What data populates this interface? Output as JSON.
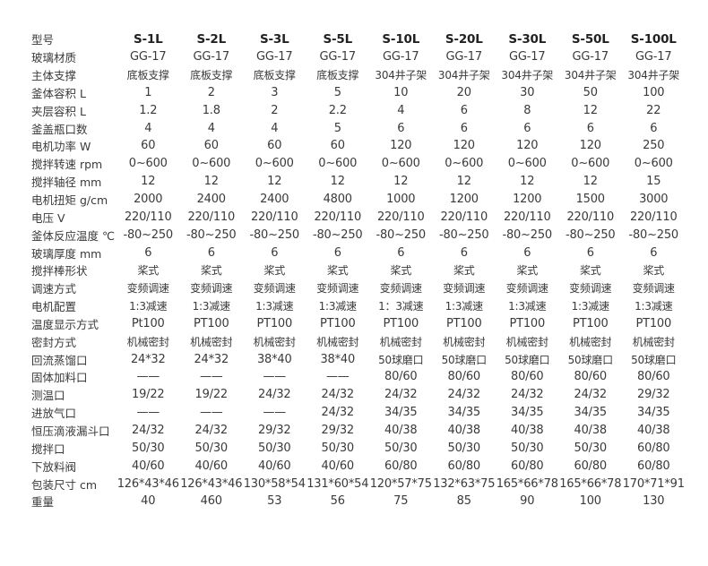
{
  "header": {
    "label": "型号",
    "models": [
      "S-1L",
      "S-2L",
      "S-3L",
      "S-5L",
      "S-10L",
      "S-20L",
      "S-30L",
      "S-50L",
      "S-100L"
    ]
  },
  "rows": [
    {
      "label": "玻璃材质",
      "values": [
        "GG-17",
        "GG-17",
        "GG-17",
        "GG-17",
        "GG-17",
        "GG-17",
        "GG-17",
        "GG-17",
        "GG-17"
      ]
    },
    {
      "label": "主体支撑",
      "values": [
        "底板支撑",
        "底板支撑",
        "底板支撑",
        "底板支撑",
        "304井子架",
        "304井子架",
        "304井子架",
        "304井子架",
        "304井子架"
      ]
    },
    {
      "label": "釜体容积 L",
      "values": [
        "1",
        "2",
        "3",
        "5",
        "10",
        "20",
        "30",
        "50",
        "100"
      ]
    },
    {
      "label": "夹层容积 L",
      "values": [
        "1.2",
        "1.8",
        "2",
        "2.2",
        "4",
        "6",
        "8",
        "12",
        "22"
      ]
    },
    {
      "label": "釜盖瓶口数",
      "values": [
        "4",
        "4",
        "4",
        "5",
        "6",
        "6",
        "6",
        "6",
        "6"
      ]
    },
    {
      "label": "电机功率 W",
      "values": [
        "60",
        "60",
        "60",
        "60",
        "120",
        "120",
        "120",
        "120",
        "250"
      ]
    },
    {
      "label": "搅拌转速 rpm",
      "values": [
        "0~600",
        "0~600",
        "0~600",
        "0~600",
        "0~600",
        "0~600",
        "0~600",
        "0~600",
        "0~600"
      ]
    },
    {
      "label": "搅拌轴径 mm",
      "values": [
        "12",
        "12",
        "12",
        "12",
        "12",
        "12",
        "12",
        "12",
        "15"
      ]
    },
    {
      "label": "电机扭矩 g/cm",
      "values": [
        "2000",
        "2400",
        "2400",
        "4800",
        "1000",
        "1200",
        "1200",
        "1500",
        "3000"
      ]
    },
    {
      "label": "电压 V",
      "values": [
        "220/110",
        "220/110",
        "220/110",
        "220/110",
        "220/110",
        "220/110",
        "220/110",
        "220/110",
        "220/110"
      ]
    },
    {
      "label": "釜体反应温度 ℃",
      "values": [
        "-80~250",
        "-80~250",
        "-80~250",
        "-80~250",
        "-80~250",
        "-80~250",
        "-80~250",
        "-80~250",
        "-80~250"
      ]
    },
    {
      "label": "玻璃厚度 mm",
      "values": [
        "6",
        "6",
        "6",
        "6",
        "6",
        "6",
        "6",
        "6",
        "6"
      ]
    },
    {
      "label": "搅拌棒形状",
      "values": [
        "桨式",
        "桨式",
        "桨式",
        "桨式",
        "桨式",
        "桨式",
        "桨式",
        "桨式",
        "桨式"
      ]
    },
    {
      "label": "调速方式",
      "values": [
        "变频调速",
        "变频调速",
        "变频调速",
        "变频调速",
        "变频调速",
        "变频调速",
        "变频调速",
        "变频调速",
        "变频调速"
      ]
    },
    {
      "label": "电机配置",
      "values": [
        "1:3减速",
        "1:3减速",
        "1:3减速",
        "1:3减速",
        "1：3减速",
        "1:3减速",
        "1:3减速",
        "1:3减速",
        "1:3减速"
      ]
    },
    {
      "label": "温度显示方式",
      "values": [
        "Pt100",
        "PT100",
        "PT100",
        "PT100",
        "PT100",
        "PT100",
        "PT100",
        "PT100",
        "PT100"
      ]
    },
    {
      "label": "密封方式",
      "values": [
        "机械密封",
        "机械密封",
        "机械密封",
        "机械密封",
        "机械密封",
        "机械密封",
        "机械密封",
        "机械密封",
        "机械密封"
      ]
    },
    {
      "label": "回流蒸馏口",
      "values": [
        "24*32",
        "24*32",
        "38*40",
        "38*40",
        "50球磨口",
        "50球磨口",
        "50球磨口",
        "50球磨口",
        "50球磨口"
      ]
    },
    {
      "label": "固体加料口",
      "values": [
        "——",
        "——",
        "——",
        "——",
        "80/60",
        "80/60",
        "80/60",
        "80/60",
        "80/60"
      ]
    },
    {
      "label": "测温口",
      "values": [
        "19/22",
        "19/22",
        "24/32",
        "24/32",
        "24/32",
        "24/32",
        "24/32",
        "24/32",
        "29/32"
      ]
    },
    {
      "label": "进放气口",
      "values": [
        "——",
        "——",
        "——",
        "24/32",
        "34/35",
        "34/35",
        "34/35",
        "34/35",
        "34/35"
      ]
    },
    {
      "label": "恒压滴液漏斗口",
      "values": [
        "24/32",
        "24/32",
        "29/32",
        "29/32",
        "40/38",
        "40/38",
        "40/38",
        "40/38",
        "40/38"
      ]
    },
    {
      "label": "搅拌口",
      "values": [
        "50/30",
        "50/30",
        "50/30",
        "50/30",
        "50/30",
        "50/30",
        "50/30",
        "50/30",
        "60/80"
      ]
    },
    {
      "label": "下放料阀",
      "values": [
        "40/60",
        "40/60",
        "40/60",
        "40/60",
        "60/80",
        "60/80",
        "60/80",
        "60/80",
        "60/80"
      ]
    },
    {
      "label": "包装尺寸 cm",
      "values": [
        "126*43*46",
        "126*43*46",
        "130*58*54",
        "131*60*54",
        "120*57*75",
        "132*63*75",
        "165*66*78",
        "165*66*78",
        "170*71*91"
      ]
    },
    {
      "label": "重量",
      "values": [
        "40",
        "460",
        "53",
        "56",
        "75",
        "85",
        "90",
        "100",
        "130"
      ]
    }
  ]
}
